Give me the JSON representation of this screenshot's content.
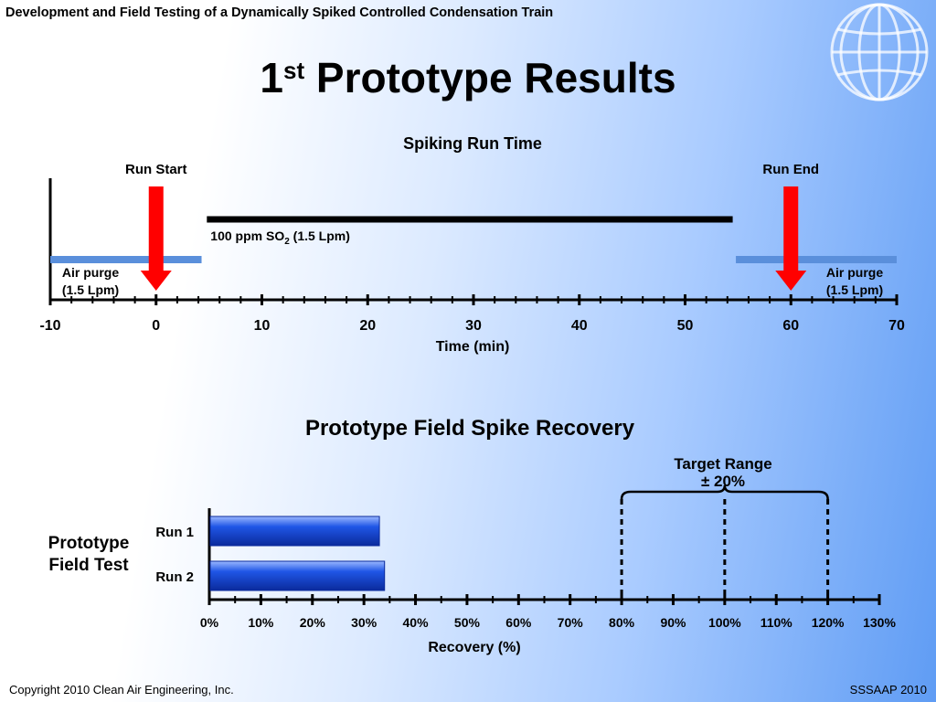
{
  "header": "Development and Field Testing of a Dynamically Spiked Controlled Condensation Train",
  "title": {
    "main": "1",
    "sup": "st",
    "rest": " Prototype Results"
  },
  "footer": {
    "copyright": "Copyright 2010 Clean Air Engineering, Inc.",
    "conference": "SSSAAP 2010"
  },
  "chart_data": [
    {
      "type": "timeline",
      "title": "Spiking Run Time",
      "xlabel": "Time (min)",
      "xlim": [
        -10,
        70
      ],
      "ticks": [
        -10,
        0,
        10,
        20,
        30,
        40,
        50,
        60,
        70
      ],
      "tick_labels": [
        "-10",
        "0",
        "10",
        "20",
        "30",
        "40",
        "50",
        "60",
        "70"
      ],
      "events": [
        {
          "label": "Run Start",
          "x": 0
        },
        {
          "label": "Run End",
          "x": 60
        }
      ],
      "segments": [
        {
          "label_line1": "Air purge",
          "label_line2": "(1.5 Lpm)",
          "start": -10,
          "end": 4.3,
          "color": "#5a8fdb"
        },
        {
          "label_pre": "100 ppm SO",
          "label_sub": "2",
          "label_post": " (1.5 Lpm)",
          "start": 4.8,
          "end": 54.5,
          "color": "#000000"
        },
        {
          "label_line1": "Air purge",
          "label_line2": "(1.5 Lpm)",
          "start": 54.8,
          "end": 70,
          "color": "#5a8fdb"
        }
      ]
    },
    {
      "type": "bar",
      "orientation": "horizontal",
      "title": "Prototype Field Spike Recovery",
      "xlabel": "Recovery (%)",
      "group_label_line1": "Prototype",
      "group_label_line2": "Field Test",
      "categories": [
        "Run 1",
        "Run 2"
      ],
      "values": [
        33,
        34
      ],
      "xlim": [
        0,
        130
      ],
      "ticks": [
        0,
        10,
        20,
        30,
        40,
        50,
        60,
        70,
        80,
        90,
        100,
        110,
        120,
        130
      ],
      "tick_labels": [
        "0%",
        "10%",
        "20%",
        "30%",
        "40%",
        "50%",
        "60%",
        "70%",
        "80%",
        "90%",
        "100%",
        "110%",
        "120%",
        "130%"
      ],
      "target_lines": [
        80,
        100,
        120
      ],
      "target_label_line1": "Target Range",
      "target_label_line2": "± 20%"
    }
  ]
}
